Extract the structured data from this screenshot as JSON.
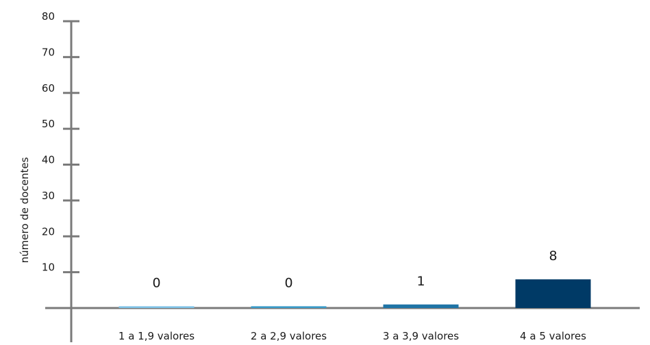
{
  "chart_data": {
    "type": "bar",
    "title": "",
    "xlabel": "",
    "ylabel": "número de docentes",
    "categories": [
      "1 a 1,9 valores",
      "2 a 2,9 valores",
      "3 a 3,9 valores",
      "4 a 5 valores"
    ],
    "values": [
      0,
      0,
      1,
      8
    ],
    "data_labels": [
      "0",
      "0",
      "1",
      "8"
    ],
    "yticks": [
      10,
      20,
      30,
      40,
      50,
      60,
      70,
      80
    ],
    "ylim": [
      0,
      80
    ],
    "grid": false,
    "legend": "none",
    "colors": [
      "#7fc3e8",
      "#3a9bc8",
      "#1e74a6",
      "#003a66"
    ],
    "axis_color": "#7a7a7a"
  }
}
